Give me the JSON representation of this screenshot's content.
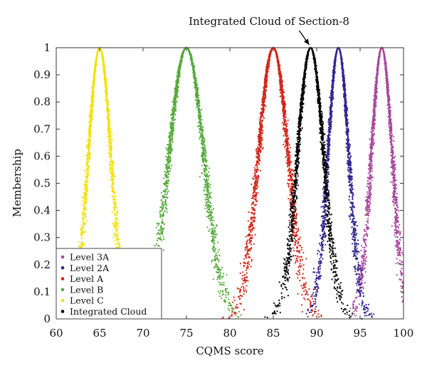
{
  "chart_data": {
    "type": "scatter",
    "xlabel": "CQMS score",
    "ylabel": "Membership",
    "xlim": [
      60,
      100
    ],
    "ylim": [
      0,
      1
    ],
    "xticks": [
      "60",
      "65",
      "70",
      "75",
      "80",
      "85",
      "90",
      "95",
      "100"
    ],
    "yticks": [
      "0",
      "0.1",
      "0.2",
      "0.3",
      "0.4",
      "0.5",
      "0.6",
      "0.7",
      "0.8",
      "0.9",
      "1"
    ],
    "legend_position": "bottom-left",
    "annotation": "Integrated Cloud of Section-8",
    "annotation_target": {
      "x": 89.3,
      "y": 1
    },
    "series": [
      {
        "name": "Level 3A",
        "color": "#a8469c",
        "Ex": 97.5,
        "En": 1.2,
        "He": 0.1,
        "x_range": [
          93,
          100
        ]
      },
      {
        "name": "Level 2A",
        "color": "#2e2490",
        "Ex": 92.5,
        "En": 1.2,
        "He": 0.1,
        "x_range": [
          88,
          97
        ]
      },
      {
        "name": "Level A",
        "color": "#d42418",
        "Ex": 85,
        "En": 1.7,
        "He": 0.15,
        "x_range": [
          79,
          91
        ]
      },
      {
        "name": "Level B",
        "color": "#55aa3a",
        "Ex": 75,
        "En": 2.0,
        "He": 0.15,
        "x_range": [
          68,
          82
        ]
      },
      {
        "name": "Level C",
        "color": "#f2e20c",
        "Ex": 65,
        "En": 1.3,
        "He": 0.1,
        "x_range": [
          60,
          70
        ]
      },
      {
        "name": "Integrated Cloud",
        "color": "#000000",
        "Ex": 89.3,
        "En": 1.5,
        "He": 0.12,
        "x_range": [
          82,
          96
        ]
      }
    ]
  }
}
